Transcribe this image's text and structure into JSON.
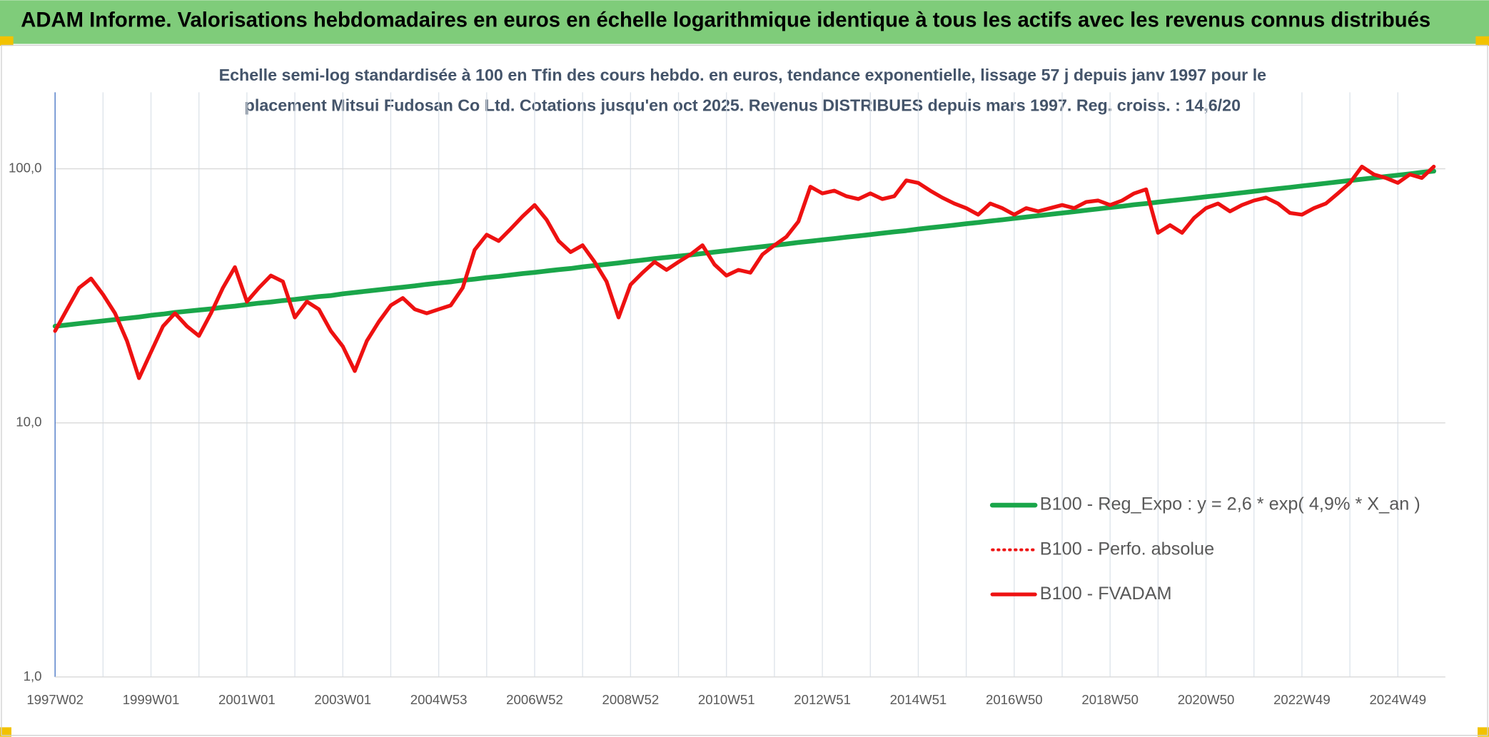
{
  "header": {
    "title": "ADAM Informe. Valorisations hebdomadaires en euros en échelle logarithmique identique à tous les actifs avec les revenus connus distribués"
  },
  "chart_data": {
    "type": "line",
    "title": [
      "Echelle semi-log standardisée à 100 en Tfin des cours hebdo. en euros, tendance exponentielle, lissage 57 j depuis janv 1997 pour le",
      "placement Mitsui Fudosan Co Ltd. Cotations jusqu'en oct 2025. Revenus DISTRIBUES depuis mars 1997. Reg. croiss. : 14,6/20"
    ],
    "log_scale": true,
    "grid": true,
    "legend": "lower right",
    "ylim": [
      1,
      200
    ],
    "yticks": [
      {
        "value": 1,
        "label": "1,0"
      },
      {
        "value": 10,
        "label": "10,0"
      },
      {
        "value": 100,
        "label": "100,0"
      }
    ],
    "categories": [
      "1997W02",
      null,
      null,
      null,
      null,
      null,
      null,
      null,
      "1999W01",
      null,
      null,
      null,
      null,
      null,
      null,
      null,
      "2001W01",
      null,
      null,
      null,
      null,
      null,
      null,
      null,
      "2003W01",
      null,
      null,
      null,
      null,
      null,
      null,
      null,
      "2004W53",
      null,
      null,
      null,
      null,
      null,
      null,
      null,
      "2006W52",
      null,
      null,
      null,
      null,
      null,
      null,
      null,
      "2008W52",
      null,
      null,
      null,
      null,
      null,
      null,
      null,
      "2010W51",
      null,
      null,
      null,
      null,
      null,
      null,
      null,
      "2012W51",
      null,
      null,
      null,
      null,
      null,
      null,
      null,
      "2014W51",
      null,
      null,
      null,
      null,
      null,
      null,
      null,
      "2016W50",
      null,
      null,
      null,
      null,
      null,
      null,
      null,
      "2018W50",
      null,
      null,
      null,
      null,
      null,
      null,
      null,
      "2020W50",
      null,
      null,
      null,
      null,
      null,
      null,
      null,
      "2022W49",
      null,
      null,
      null,
      null,
      null,
      null,
      null,
      "2024W49",
      null,
      null,
      null
    ],
    "series": [
      {
        "name": "B100 - Reg_Expo : y = 2,6 * exp( 4,9% *  X_an )",
        "color": "#1aa64a",
        "line_style": "solid",
        "width": 5,
        "values": [
          24.0,
          24.3,
          24.6,
          24.9,
          25.2,
          25.5,
          25.8,
          26.1,
          26.5,
          26.8,
          27.2,
          27.5,
          27.8,
          28.1,
          28.5,
          28.8,
          29.2,
          29.6,
          29.9,
          30.3,
          30.6,
          31.0,
          31.4,
          31.7,
          32.2,
          32.6,
          33.0,
          33.4,
          33.8,
          34.2,
          34.6,
          35.1,
          35.5,
          35.9,
          36.4,
          36.8,
          37.3,
          37.7,
          38.2,
          38.7,
          39.1,
          39.6,
          40.1,
          40.5,
          41.1,
          41.6,
          42.1,
          42.6,
          43.2,
          43.7,
          44.3,
          44.8,
          45.3,
          45.8,
          46.4,
          47.0,
          47.6,
          48.2,
          48.8,
          49.4,
          50.0,
          50.6,
          51.3,
          51.9,
          52.5,
          53.1,
          53.8,
          54.4,
          55.1,
          55.8,
          56.5,
          57.1,
          57.9,
          58.6,
          59.3,
          60.0,
          60.8,
          61.5,
          62.3,
          63.0,
          63.8,
          64.6,
          65.4,
          66.2,
          67.0,
          67.8,
          68.7,
          69.5,
          70.4,
          71.2,
          72.2,
          73.0,
          73.9,
          74.8,
          75.7,
          76.6,
          77.6,
          78.5,
          79.5,
          80.5,
          81.5,
          82.5,
          83.5,
          84.5,
          85.6,
          86.6,
          87.7,
          88.8,
          89.9,
          91.0,
          92.1,
          93.2,
          94.4,
          95.5,
          96.8,
          97.9
        ]
      },
      {
        "name": "B100 - Perfo. absolue",
        "color": "#ee1111",
        "line_style": "dotted",
        "width": 3,
        "values": [
          23,
          28,
          34,
          37,
          32,
          27,
          21,
          15,
          19,
          24,
          27,
          24,
          22,
          27,
          34,
          41,
          30,
          34,
          38,
          36,
          26,
          30,
          28,
          23,
          20,
          16,
          21,
          25,
          29,
          31,
          28,
          27,
          28,
          29,
          34,
          48,
          55,
          52,
          58,
          65,
          72,
          63,
          52,
          47,
          50,
          43,
          36,
          26,
          35,
          39,
          43,
          40,
          43,
          46,
          50,
          42,
          38,
          40,
          39,
          46,
          50,
          54,
          62,
          85,
          80,
          82,
          78,
          76,
          80,
          76,
          78,
          90,
          88,
          82,
          77,
          73,
          70,
          66,
          73,
          70,
          66,
          70,
          68,
          70,
          72,
          70,
          74,
          75,
          72,
          75,
          80,
          83,
          56,
          60,
          56,
          64,
          70,
          73,
          68,
          72,
          75,
          77,
          73,
          67,
          66,
          70,
          73,
          80,
          88,
          102,
          95,
          92,
          88,
          95,
          92,
          102
        ]
      },
      {
        "name": "B100 - FVADAM",
        "color": "#ee1111",
        "line_style": "solid",
        "width": 4,
        "values": [
          23,
          28,
          34,
          37,
          32,
          27,
          21,
          15,
          19,
          24,
          27,
          24,
          22,
          27,
          34,
          41,
          30,
          34,
          38,
          36,
          26,
          30,
          28,
          23,
          20,
          16,
          21,
          25,
          29,
          31,
          28,
          27,
          28,
          29,
          34,
          48,
          55,
          52,
          58,
          65,
          72,
          63,
          52,
          47,
          50,
          43,
          36,
          26,
          35,
          39,
          43,
          40,
          43,
          46,
          50,
          42,
          38,
          40,
          39,
          46,
          50,
          54,
          62,
          85,
          80,
          82,
          78,
          76,
          80,
          76,
          78,
          90,
          88,
          82,
          77,
          73,
          70,
          66,
          73,
          70,
          66,
          70,
          68,
          70,
          72,
          70,
          74,
          75,
          72,
          75,
          80,
          83,
          56,
          60,
          56,
          64,
          70,
          73,
          68,
          72,
          75,
          77,
          73,
          67,
          66,
          70,
          73,
          80,
          88,
          102,
          95,
          92,
          88,
          95,
          92,
          102
        ]
      }
    ]
  }
}
